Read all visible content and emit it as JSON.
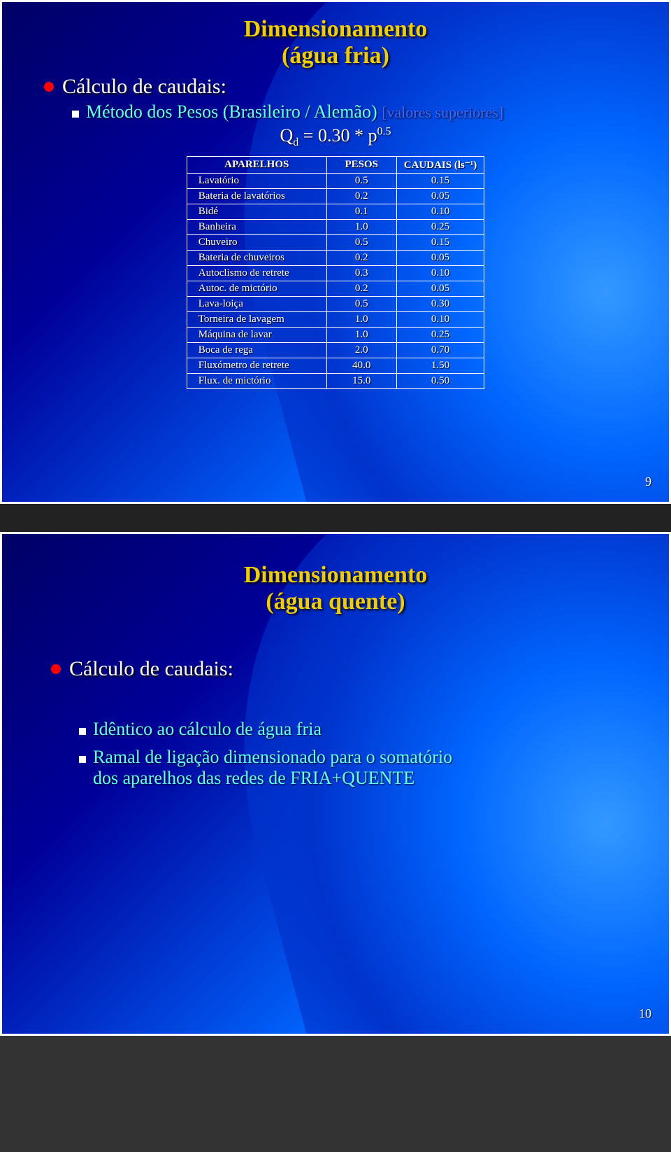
{
  "slide1": {
    "title": "Dimensionamento",
    "subtitle": "(água fria)",
    "bullet": {
      "color": "#ff0000",
      "text_color": "#ffffff",
      "text": "Cálculo de caudais:"
    },
    "sub_bullet": {
      "text": "Método dos Pesos (Brasileiro / Alemão)",
      "text_color": "#66ffff",
      "suffix": "[valores superiores]",
      "suffix_color": "#4466ff"
    },
    "formula": {
      "prefix": "Q",
      "sub": "d",
      "mid": " = 0.30 * p",
      "sup": "0.5"
    },
    "table": {
      "headers": [
        "APARELHOS",
        "PESOS",
        "CAUDAIS (ls⁻¹)"
      ],
      "rows": [
        [
          "Lavatório",
          "0.5",
          "0.15"
        ],
        [
          "Bateria de lavatórios",
          "0.2",
          "0.05"
        ],
        [
          "Bidé",
          "0.1",
          "0.10"
        ],
        [
          "Banheira",
          "1.0",
          "0.25"
        ],
        [
          "Chuveiro",
          "0.5",
          "0.15"
        ],
        [
          "Bateria de chuveiros",
          "0.2",
          "0.05"
        ],
        [
          "Autoclismo de retrete",
          "0.3",
          "0.10"
        ],
        [
          "Autoc. de mictório",
          "0.2",
          "0.05"
        ],
        [
          "Lava-loiça",
          "0.5",
          "0.30"
        ],
        [
          "Torneira de lavagem",
          "1.0",
          "0.10"
        ],
        [
          "Máquina de lavar",
          "1.0",
          "0.25"
        ],
        [
          "Boca de rega",
          "2.0",
          "0.70"
        ],
        [
          "Fluxómetro de retrete",
          "40.0",
          "1.50"
        ],
        [
          "Flux. de mictório",
          "15.0",
          "0.50"
        ]
      ]
    },
    "page": "9"
  },
  "slide2": {
    "title": "Dimensionamento",
    "subtitle": "(água quente)",
    "bullet": {
      "color": "#ff0000",
      "text_color": "#ffffff",
      "text": "Cálculo de caudais:"
    },
    "items": [
      {
        "text": "Idêntico ao cálculo de água fria",
        "color": "#66ffff"
      },
      {
        "text": "Ramal de ligação dimensionado para o somatório dos aparelhos das redes de FRIA+QUENTE",
        "color": "#66ffff"
      }
    ],
    "page": "10"
  }
}
